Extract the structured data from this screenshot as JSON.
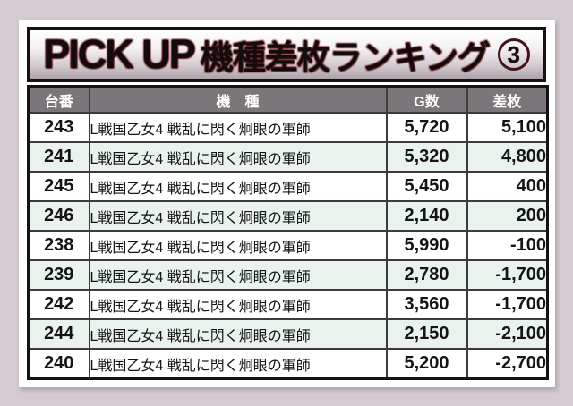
{
  "title": {
    "latin": "PICK UP",
    "jp": "機種差枚ランキング",
    "badge": "3"
  },
  "chart_data": {
    "type": "table",
    "title": "PICK UP 機種差枚ランキング ③",
    "columns": [
      "台番",
      "機　種",
      "G数",
      "差枚"
    ],
    "rows": [
      [
        "243",
        "L戦国乙女4 戦乱に閃く炯眼の軍師",
        "5,720",
        "5,100"
      ],
      [
        "241",
        "L戦国乙女4 戦乱に閃く炯眼の軍師",
        "5,320",
        "4,800"
      ],
      [
        "245",
        "L戦国乙女4 戦乱に閃く炯眼の軍師",
        "5,450",
        "400"
      ],
      [
        "246",
        "L戦国乙女4 戦乱に閃く炯眼の軍師",
        "2,140",
        "200"
      ],
      [
        "238",
        "L戦国乙女4 戦乱に閃く炯眼の軍師",
        "5,990",
        "-100"
      ],
      [
        "239",
        "L戦国乙女4 戦乱に閃く炯眼の軍師",
        "2,780",
        "-1,700"
      ],
      [
        "242",
        "L戦国乙女4 戦乱に閃く炯眼の軍師",
        "3,560",
        "-1,700"
      ],
      [
        "244",
        "L戦国乙女4 戦乱に閃く炯眼の軍師",
        "2,150",
        "-2,100"
      ],
      [
        "240",
        "L戦国乙女4 戦乱に閃く炯眼の軍師",
        "5,200",
        "-2,700"
      ]
    ],
    "layout_hints": {
      "diff_column_alignment": "right",
      "grid": true,
      "zebra_striping": true
    }
  },
  "colors": {
    "page_bg": "#d5ccd3",
    "card_bg": "#ffffff",
    "title_gradient_top": "#ffffff",
    "title_gradient_bottom": "#aba3a8",
    "title_border": "#141014",
    "title_text_outline": "#6c1e23",
    "header_bg": "#7b767a",
    "header_text": "#ffffff",
    "row_alt_bg": "#e9f2ec",
    "grid_border": "#3d3b3c",
    "outer_border": "#151215",
    "text": "#141414"
  }
}
